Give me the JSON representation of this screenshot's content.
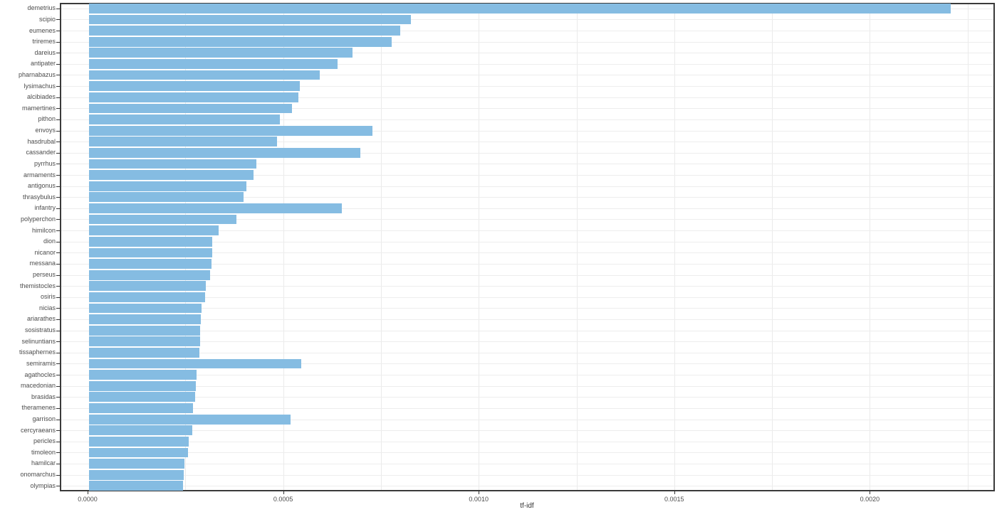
{
  "chart_data": {
    "type": "bar",
    "orientation": "horizontal",
    "title": "",
    "xlabel": "tf-idf",
    "ylabel": "",
    "legend": "none",
    "grid": "on",
    "xlim": [
      0,
      0.00232
    ],
    "minor_grid_step": 0.00025,
    "x_ticks": {
      "labels": [
        "0.0000",
        "0.0005",
        "0.0010",
        "0.0015",
        "0.0020"
      ],
      "values": [
        0,
        0.0005,
        0.001,
        0.0015,
        0.002
      ]
    },
    "categories": [
      "demetrius",
      "scipio",
      "eumenes",
      "triremes",
      "dareius",
      "antipater",
      "pharnabazus",
      "lysimachus",
      "alcibiades",
      "mamertines",
      "pithon",
      "envoys",
      "hasdrubal",
      "cassander",
      "pyrrhus",
      "armaments",
      "antigonus",
      "thrasybulus",
      "infantry",
      "polyperchon",
      "himilcon",
      "dion",
      "nicanor",
      "messana",
      "perseus",
      "themistocles",
      "osiris",
      "nicias",
      "ariarathes",
      "sosistratus",
      "selinuntians",
      "tissaphernes",
      "semiramis",
      "agathocles",
      "macedonian",
      "brasidas",
      "theramenes",
      "garrison",
      "cercyraeans",
      "pericles",
      "timoleon",
      "hamilcar",
      "onomarchus",
      "olympias"
    ],
    "values": [
      0.002203,
      0.000823,
      0.000796,
      0.000774,
      0.000674,
      0.000635,
      0.00059,
      0.000539,
      0.000535,
      0.000519,
      0.000488,
      0.000725,
      0.000481,
      0.000694,
      0.000428,
      0.000421,
      0.000402,
      0.000395,
      0.000646,
      0.000377,
      0.000331,
      0.000315,
      0.000315,
      0.000313,
      0.00031,
      0.000299,
      0.000297,
      0.000288,
      0.000286,
      0.000284,
      0.000284,
      0.000282,
      0.000543,
      0.000275,
      0.000273,
      0.000271,
      0.000266,
      0.000515,
      0.000264,
      0.000255,
      0.000253,
      0.000244,
      0.000242,
      0.00024
    ],
    "colors": {
      "bar_fill": "#85BCE2",
      "grid": "#eaeaea",
      "panel_border": "#3a3a3a",
      "tick_text": "#4d4d4d",
      "axis_title_text": "#333333",
      "background": "#ffffff"
    }
  }
}
